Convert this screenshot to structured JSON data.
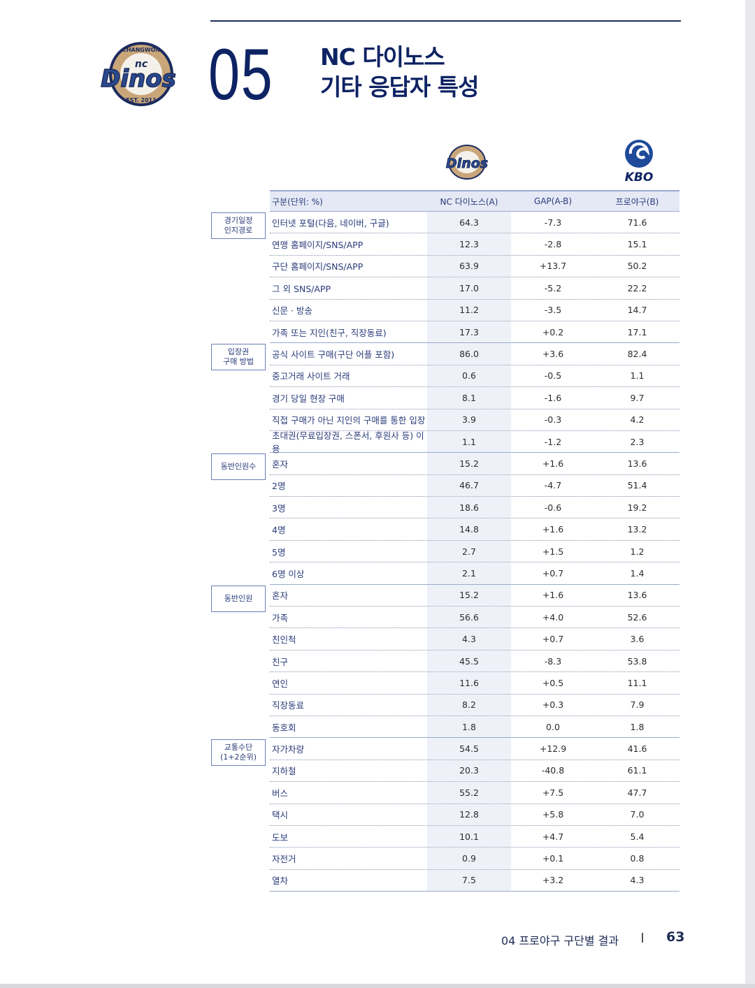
{
  "header": {
    "number": "05",
    "title_line1": "NC 다이노스",
    "title_line2": "기타 응답자 특성",
    "logo_text": "CHANGWON NC DINOS EST. 2011",
    "kbo_logo_text": "KBO"
  },
  "colors": {
    "navy": "#0e2363",
    "header_bg": "#e4e9f5",
    "nc_column_bg": "#eef1f8",
    "logo_gold": "#c9a67a"
  },
  "table": {
    "columns": [
      "구분(단위: %)",
      "NC 다이노스(A)",
      "GAP(A-B)",
      "프로야구(B)"
    ],
    "groups": [
      {
        "label": "경기일정\n인지경로",
        "rows": [
          [
            "인터넷 포털(다음, 네이버, 구글)",
            "64.3",
            "-7.3",
            "71.6"
          ],
          [
            "연맹 홈페이지/SNS/APP",
            "12.3",
            "-2.8",
            "15.1"
          ],
          [
            "구단 홈페이지/SNS/APP",
            "63.9",
            "+13.7",
            "50.2"
          ],
          [
            "그 외 SNS/APP",
            "17.0",
            "-5.2",
            "22.2"
          ],
          [
            "신문 · 방송",
            "11.2",
            "-3.5",
            "14.7"
          ],
          [
            "가족 또는 지인(친구, 직장동료)",
            "17.3",
            "+0.2",
            "17.1"
          ]
        ]
      },
      {
        "label": "입장권\n구매 방법",
        "rows": [
          [
            "공식 사이트 구매(구단 어플 포함)",
            "86.0",
            "+3.6",
            "82.4"
          ],
          [
            "중고거래 사이트 거래",
            "0.6",
            "-0.5",
            "1.1"
          ],
          [
            "경기 당일 현장 구매",
            "8.1",
            "-1.6",
            "9.7"
          ],
          [
            "직접 구매가 아닌 지인의 구매를 통한 입장",
            "3.9",
            "-0.3",
            "4.2"
          ],
          [
            "초대권(무료입장권, 스폰서, 후원사 등) 이용",
            "1.1",
            "-1.2",
            "2.3"
          ]
        ]
      },
      {
        "label": "동반인원수",
        "rows": [
          [
            "혼자",
            "15.2",
            "+1.6",
            "13.6"
          ],
          [
            "2명",
            "46.7",
            "-4.7",
            "51.4"
          ],
          [
            "3명",
            "18.6",
            "-0.6",
            "19.2"
          ],
          [
            "4명",
            "14.8",
            "+1.6",
            "13.2"
          ],
          [
            "5명",
            "2.7",
            "+1.5",
            "1.2"
          ],
          [
            "6명 이상",
            "2.1",
            "+0.7",
            "1.4"
          ]
        ]
      },
      {
        "label": "동반인원",
        "rows": [
          [
            "혼자",
            "15.2",
            "+1.6",
            "13.6"
          ],
          [
            "가족",
            "56.6",
            "+4.0",
            "52.6"
          ],
          [
            "친인척",
            "4.3",
            "+0.7",
            "3.6"
          ],
          [
            "친구",
            "45.5",
            "-8.3",
            "53.8"
          ],
          [
            "연인",
            "11.6",
            "+0.5",
            "11.1"
          ],
          [
            "직장동료",
            "8.2",
            "+0.3",
            "7.9"
          ],
          [
            "동호회",
            "1.8",
            "0.0",
            "1.8"
          ]
        ]
      },
      {
        "label": "교통수단\n(1+2순위)",
        "rows": [
          [
            "자가차량",
            "54.5",
            "+12.9",
            "41.6"
          ],
          [
            "지하철",
            "20.3",
            "-40.8",
            "61.1"
          ],
          [
            "버스",
            "55.2",
            "+7.5",
            "47.7"
          ],
          [
            "택시",
            "12.8",
            "+5.8",
            "7.0"
          ],
          [
            "도보",
            "10.1",
            "+4.7",
            "5.4"
          ],
          [
            "자전거",
            "0.9",
            "+0.1",
            "0.8"
          ],
          [
            "열차",
            "7.5",
            "+3.2",
            "4.3"
          ]
        ]
      }
    ]
  },
  "footer": {
    "section": "04  프로야구 구단별 결과",
    "page": "63"
  }
}
